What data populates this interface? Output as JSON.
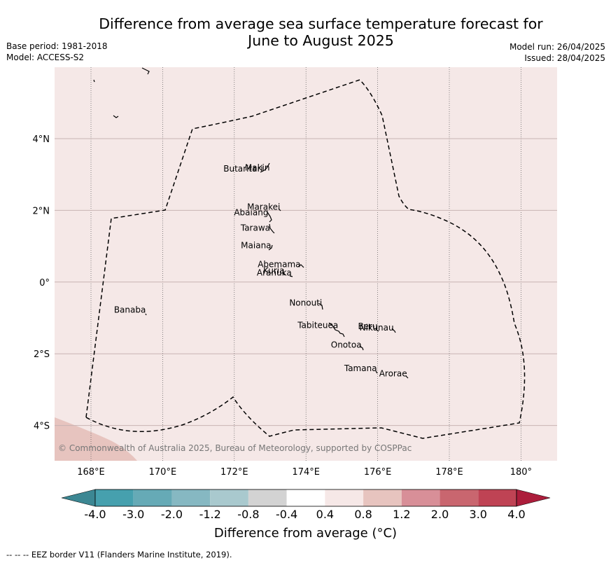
{
  "header": {
    "title_line1": "Difference from average sea surface temperature forecast for",
    "title_line2": "June to August 2025",
    "base_period": "Base period: 1981-2018",
    "model": "Model: ACCESS-S2",
    "model_run": "Model run: 26/04/2025",
    "issued": "Issued: 28/04/2025"
  },
  "map": {
    "background_color": "#f5e8e7",
    "warm_region_color": "#e7c4bf",
    "lon_ticks": [
      "168°E",
      "170°E",
      "172°E",
      "174°E",
      "176°E",
      "178°E",
      "180°"
    ],
    "lat_ticks": [
      "4°N",
      "2°N",
      "0°",
      "2°S",
      "4°S"
    ],
    "copyright": "© Commonwealth of Australia 2025, Bureau of Meteorology, supported by COSPPac",
    "islands": [
      {
        "name": "Makin",
        "lon": 172.99,
        "lat": 3.1
      },
      {
        "name": "Butaritari",
        "lon": 172.8,
        "lat": 3.07
      },
      {
        "name": "Marakei",
        "lon": 173.28,
        "lat": 2.0
      },
      {
        "name": "Abaiang",
        "lon": 172.95,
        "lat": 1.85
      },
      {
        "name": "Tarawa",
        "lon": 173.0,
        "lat": 1.42
      },
      {
        "name": "Maiana",
        "lon": 173.03,
        "lat": 0.93
      },
      {
        "name": "Abemama",
        "lon": 173.85,
        "lat": 0.4
      },
      {
        "name": "Kuria",
        "lon": 173.4,
        "lat": 0.22
      },
      {
        "name": "Aranuka",
        "lon": 173.6,
        "lat": 0.17
      },
      {
        "name": "Nonouti",
        "lon": 174.45,
        "lat": -0.67
      },
      {
        "name": "Banaba",
        "lon": 169.53,
        "lat": -0.87
      },
      {
        "name": "Tabiteuea",
        "lon": 174.9,
        "lat": -1.3
      },
      {
        "name": "Beru",
        "lon": 176.0,
        "lat": -1.33
      },
      {
        "name": "Nikunau",
        "lon": 176.45,
        "lat": -1.37
      },
      {
        "name": "Onotoa",
        "lon": 175.55,
        "lat": -1.85
      },
      {
        "name": "Tamana",
        "lon": 175.98,
        "lat": -2.5
      },
      {
        "name": "Arorae",
        "lon": 176.82,
        "lat": -2.65
      }
    ]
  },
  "colorbar": {
    "labels": [
      "-4.0",
      "-3.0",
      "-2.0",
      "-1.2",
      "-0.8",
      "-0.4",
      "0.4",
      "0.8",
      "1.2",
      "2.0",
      "3.0",
      "4.0"
    ],
    "colors": [
      "#3c8793",
      "#46a0ae",
      "#66aab6",
      "#86b8c2",
      "#a9c9ce",
      "#d3d3d3",
      "#ffffff",
      "#f6e8e7",
      "#e7c4bf",
      "#d88f98",
      "#c9666f",
      "#bf4354",
      "#ac1d3b"
    ],
    "title": "Difference from average (°C)"
  },
  "footer": "--  --  -- EEZ border V11 (Flanders Marine Institute, 2019)."
}
